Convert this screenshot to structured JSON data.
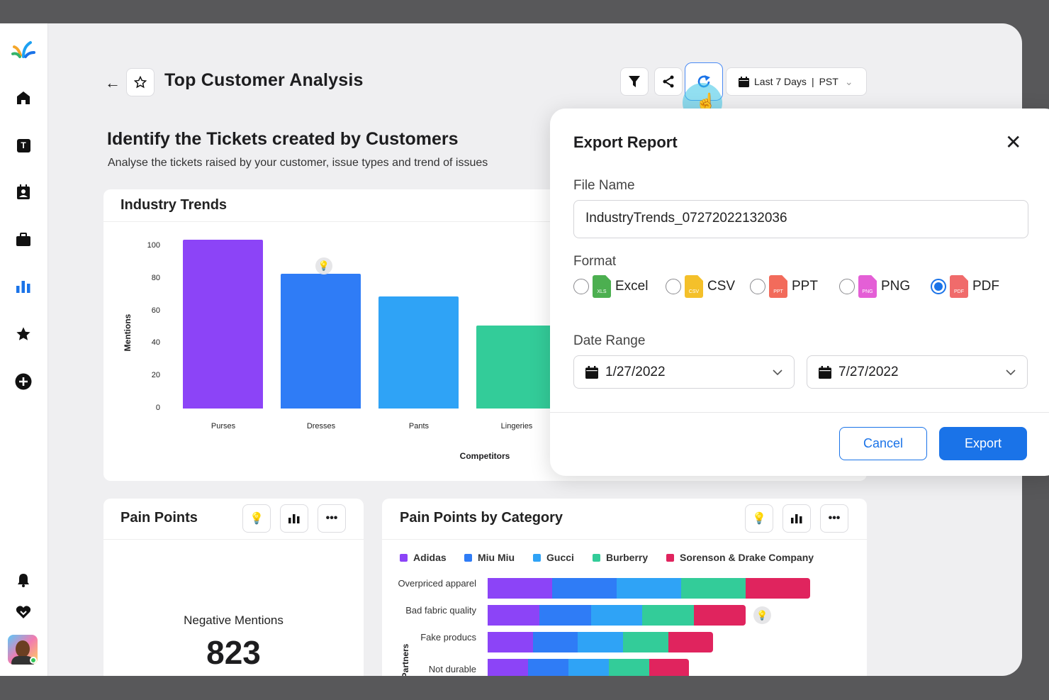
{
  "sidebar": {
    "items": [
      {
        "icon": "home-icon"
      },
      {
        "icon": "tickets-icon",
        "label": "T"
      },
      {
        "icon": "contacts-icon"
      },
      {
        "icon": "briefcase-icon"
      },
      {
        "icon": "reports-icon",
        "active": true
      },
      {
        "icon": "star-icon"
      },
      {
        "icon": "add-icon"
      }
    ],
    "bottom": [
      {
        "icon": "bell-icon"
      },
      {
        "icon": "heart-hands-icon"
      },
      {
        "icon": "avatar"
      }
    ],
    "accent": "#1a73e8"
  },
  "header": {
    "title": "Top Customer Analysis",
    "date_filter": "Last 7 Days",
    "timezone": "PST",
    "separator": "|"
  },
  "section": {
    "title": "Identify the Tickets created by Customers",
    "subtitle": "Analyse the tickets raised by your customer, issue types and trend of issues"
  },
  "industry_trends": {
    "title": "Industry Trends"
  },
  "pain_points": {
    "title": "Pain Points",
    "metric_label": "Negative Mentions",
    "metric_value": "823"
  },
  "pain_by_category": {
    "title": "Pain Points by Category"
  },
  "export": {
    "title": "Export Report",
    "file_name_label": "File Name",
    "file_name": "IndustryTrends_07272022132036",
    "format_label": "Format",
    "formats": [
      {
        "label": "Excel",
        "badge": "XLS",
        "color": "#4caf50",
        "selected": false
      },
      {
        "label": "CSV",
        "badge": "CSV",
        "color": "#f4c02a",
        "selected": false
      },
      {
        "label": "PPT",
        "badge": "PPT",
        "color": "#f26b5b",
        "selected": false
      },
      {
        "label": "PNG",
        "badge": "PNG",
        "color": "#e45fd6",
        "selected": false
      },
      {
        "label": "PDF",
        "badge": "PDF",
        "color": "#f06b6b",
        "selected": true
      }
    ],
    "date_range_label": "Date Range",
    "start_date": "1/27/2022",
    "end_date": "7/27/2022",
    "cancel": "Cancel",
    "submit": "Export"
  },
  "chart_data": [
    {
      "type": "bar",
      "title": "",
      "xlabel": "Competitors",
      "ylabel": "Mentions",
      "ylim": [
        0,
        100
      ],
      "yticks": [
        0,
        20,
        40,
        60,
        80,
        100
      ],
      "grid": false,
      "categories": [
        "Purses",
        "Dresses",
        "Pants",
        "Lingeries"
      ],
      "values": [
        104,
        83,
        69,
        51
      ],
      "colors": [
        "#8c44f7",
        "#2f7cf6",
        "#2fa3f6",
        "#33cc99"
      ]
    },
    {
      "type": "bar",
      "orientation": "horizontal",
      "stacked": true,
      "ylabel": "Partners",
      "legend": "top",
      "categories": [
        "Overpriced apparel",
        "Bad fabric quality",
        "Fake producs",
        "Not durable"
      ],
      "series": [
        {
          "name": "Adidas",
          "color": "#8c44f7",
          "values": [
            20,
            16,
            14,
            12.5
          ]
        },
        {
          "name": "Miu Miu",
          "color": "#2f7cf6",
          "values": [
            20,
            16,
            14,
            12.5
          ]
        },
        {
          "name": "Gucci",
          "color": "#2fa3f6",
          "values": [
            20,
            16,
            14,
            12.5
          ]
        },
        {
          "name": "Burberry",
          "color": "#33cc99",
          "values": [
            20,
            16,
            14,
            12.5
          ]
        },
        {
          "name": "Sorenson & Drake Company",
          "color": "#e0245e",
          "values": [
            20,
            16,
            14,
            12.5
          ]
        }
      ]
    }
  ]
}
